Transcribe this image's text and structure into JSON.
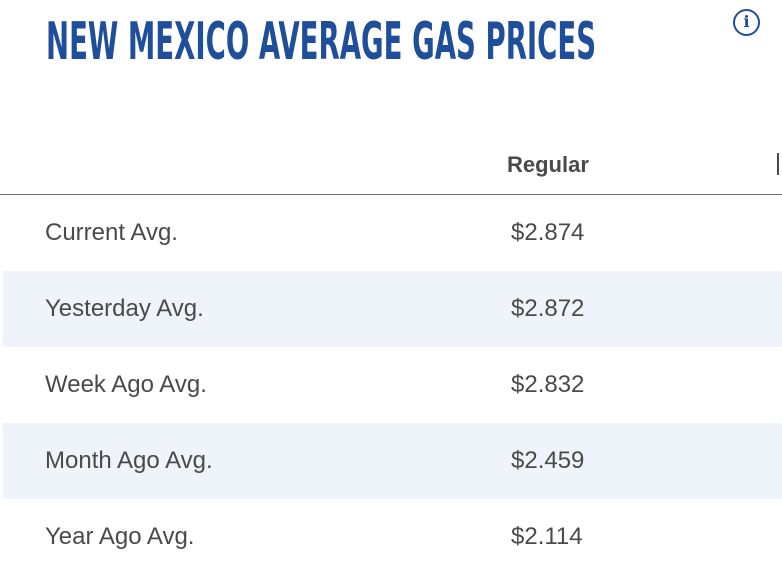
{
  "title": "NEW MEXICO AVERAGE GAS PRICES",
  "info_icon": "info-circle-icon",
  "colors": {
    "title": "#1f4e9a",
    "text": "#4a4a4a",
    "alt_row": "#eef4fa"
  },
  "table": {
    "columns": [
      "",
      "Regular"
    ],
    "rows": [
      {
        "label": "Current Avg.",
        "regular": "$2.874"
      },
      {
        "label": "Yesterday Avg.",
        "regular": "$2.872"
      },
      {
        "label": "Week Ago Avg.",
        "regular": "$2.832"
      },
      {
        "label": "Month Ago Avg.",
        "regular": "$2.459"
      },
      {
        "label": "Year Ago Avg.",
        "regular": "$2.114"
      }
    ]
  }
}
